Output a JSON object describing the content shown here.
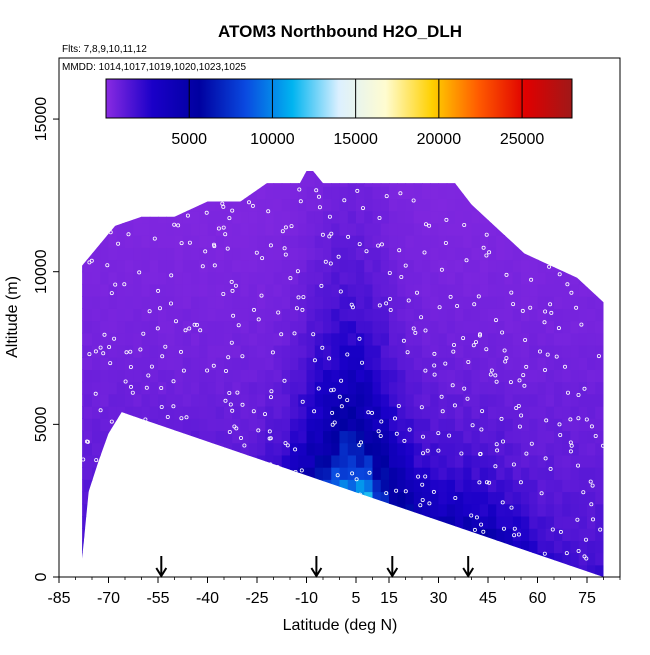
{
  "chart_data": {
    "type": "heatmap",
    "title": "ATOM3 Northbound H2O_DLH",
    "subtitle_flights": "Flts: 7,8,9,10,11,12",
    "subtitle_dates": "MMDD: 1014,1017,1019,1020,1023,1025",
    "xlabel": "Latitude (deg N)",
    "ylabel": "Altitude (m)",
    "xlim": [
      -85,
      85
    ],
    "ylim": [
      0,
      17000
    ],
    "x_ticks": [
      -85,
      -70,
      -55,
      -40,
      -25,
      -10,
      5,
      15,
      30,
      45,
      60,
      75
    ],
    "x_tick_labels": [
      "-85",
      "-70",
      "-55",
      "-40",
      "-25",
      "-10",
      "5",
      "15",
      "30",
      "45",
      "60",
      "75"
    ],
    "y_ticks": [
      0,
      5000,
      10000,
      15000
    ],
    "y_tick_labels": [
      "0",
      "5000",
      "10000",
      "15000"
    ],
    "colorbar": {
      "range": [
        0,
        28000
      ],
      "ticks": [
        5000,
        10000,
        15000,
        20000,
        25000
      ],
      "tick_labels": [
        "5000",
        "10000",
        "15000",
        "20000",
        "25000"
      ],
      "placement": "top-inside"
    },
    "colors": [
      "#8a2be2",
      "#1a00c8",
      "#0000a0",
      "#0a4ae0",
      "#00b4f0",
      "#dcf0ff",
      "#fffcd0",
      "#ffd000",
      "#ff5a00",
      "#e00000",
      "#a01818"
    ],
    "data_extent": {
      "lat_min": -78,
      "lat_max": 80
    },
    "flight_path_marker": "white open circles",
    "arrow_latitudes": [
      -54,
      -7,
      16,
      39
    ],
    "ceiling_profile": [
      {
        "lat": -78,
        "alt": 10200
      },
      {
        "lat": -68,
        "alt": 11500
      },
      {
        "lat": -60,
        "alt": 11800
      },
      {
        "lat": -50,
        "alt": 11800
      },
      {
        "lat": -40,
        "alt": 12300
      },
      {
        "lat": -30,
        "alt": 12300
      },
      {
        "lat": -22,
        "alt": 12900
      },
      {
        "lat": -12,
        "alt": 12900
      },
      {
        "lat": -10,
        "alt": 13300
      },
      {
        "lat": -8,
        "alt": 13300
      },
      {
        "lat": -5,
        "alt": 12900
      },
      {
        "lat": 35,
        "alt": 12900
      },
      {
        "lat": 40,
        "alt": 12200
      },
      {
        "lat": 48,
        "alt": 11400
      },
      {
        "lat": 56,
        "alt": 10600
      },
      {
        "lat": 64,
        "alt": 10200
      },
      {
        "lat": 72,
        "alt": 9800
      },
      {
        "lat": 80,
        "alt": 9000
      }
    ],
    "surface_profile": [
      {
        "lat": -78,
        "alt": 600
      },
      {
        "lat": -76,
        "alt": 2800
      },
      {
        "lat": -73,
        "alt": 3800
      },
      {
        "lat": -70,
        "alt": 4700
      },
      {
        "lat": -66,
        "alt": 5400
      },
      {
        "lat": 80,
        "alt": 0
      }
    ]
  }
}
